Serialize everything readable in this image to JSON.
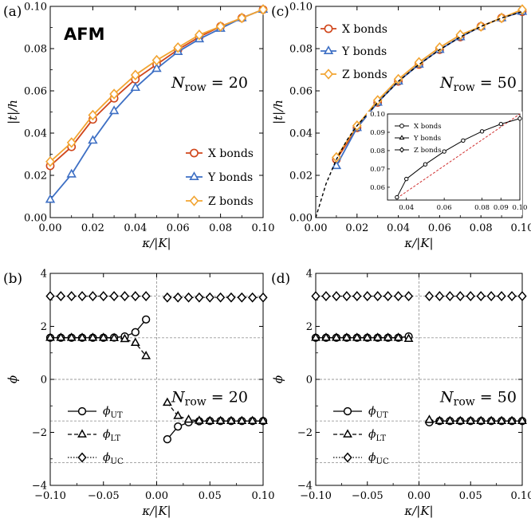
{
  "chart_data": [
    {
      "panel_label": "(a)",
      "type": "line",
      "tag": "AFM",
      "nrow_label": "N_row = 20",
      "xlabel": "κ/|K|",
      "ylabel": "|t|/h",
      "xlim": [
        0,
        0.1
      ],
      "ylim": [
        0,
        0.1
      ],
      "xticks": [
        0,
        0.02,
        0.04,
        0.06,
        0.08,
        0.1
      ],
      "xtick_labels": [
        "0.00",
        "0.02",
        "0.04",
        "0.06",
        "0.08",
        "0.10"
      ],
      "yticks": [
        0,
        0.02,
        0.04,
        0.06,
        0.08,
        0.1
      ],
      "ytick_labels": [
        "0.00",
        "0.02",
        "0.04",
        "0.06",
        "0.08",
        "0.10"
      ],
      "legend_position": "bottom-right",
      "series": [
        {
          "name": "X bonds",
          "color": "#d0461b",
          "marker": "circle",
          "x": [
            0,
            0.01,
            0.02,
            0.03,
            0.04,
            0.05,
            0.06,
            0.07,
            0.08,
            0.09,
            0.1
          ],
          "y": [
            0.0245,
            0.0335,
            0.0465,
            0.0565,
            0.0655,
            0.0725,
            0.0795,
            0.0855,
            0.0905,
            0.0945,
            0.0985
          ]
        },
        {
          "name": "Y bonds",
          "color": "#3d6fc4",
          "marker": "triangle",
          "x": [
            0,
            0.01,
            0.02,
            0.03,
            0.04,
            0.05,
            0.06,
            0.07,
            0.08,
            0.09,
            0.1
          ],
          "y": [
            0.0085,
            0.0205,
            0.0365,
            0.0505,
            0.0615,
            0.0705,
            0.0785,
            0.0845,
            0.0895,
            0.0945,
            0.0985
          ]
        },
        {
          "name": "Z bonds",
          "color": "#f2a431",
          "marker": "diamond",
          "x": [
            0,
            0.01,
            0.02,
            0.03,
            0.04,
            0.05,
            0.06,
            0.07,
            0.08,
            0.09,
            0.1
          ],
          "y": [
            0.0265,
            0.0355,
            0.0485,
            0.0585,
            0.0675,
            0.0745,
            0.0805,
            0.0865,
            0.0905,
            0.0945,
            0.0985
          ]
        }
      ]
    },
    {
      "panel_label": "(c)",
      "type": "line",
      "nrow_label": "N_row = 50",
      "xlabel": "κ/|K|",
      "ylabel": "|t|/h",
      "xlim": [
        0,
        0.1
      ],
      "ylim": [
        0,
        0.1
      ],
      "xticks": [
        0,
        0.02,
        0.04,
        0.06,
        0.08,
        0.1
      ],
      "xtick_labels": [
        "0.00",
        "0.02",
        "0.04",
        "0.06",
        "0.08",
        "0.10"
      ],
      "yticks": [
        0,
        0.02,
        0.04,
        0.06,
        0.08,
        0.1
      ],
      "ytick_labels": [
        "0.00",
        "0.02",
        "0.04",
        "0.06",
        "0.08",
        "0.10"
      ],
      "legend_position": "top-left",
      "fit_curve": {
        "style": "dashed",
        "color": "#000000",
        "x": [
          0,
          0.005,
          0.01,
          0.015,
          0.02,
          0.03,
          0.04,
          0.05,
          0.06,
          0.07,
          0.08,
          0.09,
          0.1
        ],
        "y": [
          0,
          0.016,
          0.0275,
          0.0365,
          0.0435,
          0.0545,
          0.0645,
          0.0725,
          0.0795,
          0.0855,
          0.0905,
          0.0945,
          0.0975
        ]
      },
      "series": [
        {
          "name": "X bonds",
          "color": "#d0461b",
          "marker": "circle",
          "x": [
            0.01,
            0.02,
            0.03,
            0.04,
            0.05,
            0.06,
            0.07,
            0.08,
            0.09,
            0.1
          ],
          "y": [
            0.0275,
            0.0425,
            0.0545,
            0.0645,
            0.0725,
            0.0795,
            0.0855,
            0.0905,
            0.0945,
            0.0975
          ]
        },
        {
          "name": "Y bonds",
          "color": "#3d6fc4",
          "marker": "triangle",
          "x": [
            0.01,
            0.02,
            0.03,
            0.04,
            0.05,
            0.06,
            0.07,
            0.08,
            0.09,
            0.1
          ],
          "y": [
            0.0245,
            0.0425,
            0.0545,
            0.0645,
            0.0725,
            0.0795,
            0.0855,
            0.0905,
            0.0945,
            0.0975
          ]
        },
        {
          "name": "Z bonds",
          "color": "#f2a431",
          "marker": "diamond",
          "x": [
            0.01,
            0.02,
            0.03,
            0.04,
            0.05,
            0.06,
            0.07,
            0.08,
            0.09,
            0.1
          ],
          "y": [
            0.0285,
            0.0435,
            0.0555,
            0.0655,
            0.0735,
            0.0805,
            0.0865,
            0.0905,
            0.0945,
            0.0985
          ]
        }
      ],
      "inset": {
        "xlim": [
          0.03,
          0.1
        ],
        "ylim": [
          0.053,
          0.1
        ],
        "xticks": [
          0.04,
          0.06,
          0.08,
          0.09,
          0.1
        ],
        "xtick_labels": [
          "0.04",
          "0.06",
          "0.08",
          "0.09",
          "0.10"
        ],
        "yticks": [
          0.06,
          0.07,
          0.08,
          0.09,
          0.1
        ],
        "ytick_labels": [
          "0.06",
          "0.07",
          "0.08",
          "0.09",
          "0.10"
        ],
        "legend": [
          "X bonds",
          "Y bonds",
          "Z bonds"
        ],
        "reference_line": {
          "style": "dashed",
          "color": "#d03030",
          "x": [
            0.035,
            0.1
          ],
          "y": [
            0.054,
            0.1
          ]
        },
        "x": [
          0.035,
          0.04,
          0.05,
          0.06,
          0.07,
          0.08,
          0.09,
          0.1
        ],
        "y": [
          0.0545,
          0.0645,
          0.0725,
          0.0795,
          0.0855,
          0.0905,
          0.0945,
          0.0975
        ]
      }
    },
    {
      "panel_label": "(b)",
      "type": "line",
      "nrow_label": "N_row = 20",
      "xlabel": "κ/|K|",
      "ylabel": "ϕ",
      "xlim": [
        -0.1,
        0.1
      ],
      "ylim": [
        -4,
        4
      ],
      "xticks": [
        -0.1,
        -0.05,
        0,
        0.05,
        0.1
      ],
      "xtick_labels": [
        "−0.10",
        "−0.05",
        "0.00",
        "0.05",
        "0.10"
      ],
      "yticks": [
        -4,
        -2,
        0,
        2,
        4
      ],
      "ytick_labels": [
        "−4",
        "−2",
        "0",
        "2",
        "4"
      ],
      "reference_lines_y": [
        3.1416,
        1.5708,
        0,
        -1.5708,
        -3.1416
      ],
      "reference_lines_x": [
        0
      ],
      "legend_position": "bottom-left",
      "series": [
        {
          "name": "ϕ_UT",
          "line": "solid",
          "marker": "circle",
          "segments": [
            {
              "x": [
                -0.1,
                -0.09,
                -0.08,
                -0.07,
                -0.06,
                -0.05,
                -0.04,
                -0.03,
                -0.02,
                -0.01
              ],
              "y": [
                1.5708,
                1.5708,
                1.5708,
                1.5708,
                1.5708,
                1.5708,
                1.58,
                1.62,
                1.78,
                2.26
              ]
            },
            {
              "x": [
                0.01,
                0.02,
                0.03,
                0.04,
                0.05,
                0.06,
                0.07,
                0.08,
                0.09,
                0.1
              ],
              "y": [
                -2.26,
                -1.78,
                -1.62,
                -1.58,
                -1.5708,
                -1.5708,
                -1.5708,
                -1.5708,
                -1.5708,
                -1.5708
              ]
            }
          ]
        },
        {
          "name": "ϕ_LT",
          "line": "dashed",
          "marker": "triangle",
          "segments": [
            {
              "x": [
                -0.1,
                -0.09,
                -0.08,
                -0.07,
                -0.06,
                -0.05,
                -0.04,
                -0.03,
                -0.02,
                -0.01
              ],
              "y": [
                1.5708,
                1.5708,
                1.5708,
                1.5708,
                1.5708,
                1.5708,
                1.56,
                1.52,
                1.38,
                0.88
              ]
            },
            {
              "x": [
                0.01,
                0.02,
                0.03,
                0.04,
                0.05,
                0.06,
                0.07,
                0.08,
                0.09,
                0.1
              ],
              "y": [
                -0.88,
                -1.38,
                -1.52,
                -1.56,
                -1.5708,
                -1.5708,
                -1.5708,
                -1.5708,
                -1.5708,
                -1.5708
              ]
            }
          ]
        },
        {
          "name": "ϕ_UC",
          "line": "dotted",
          "marker": "diamond",
          "segments": [
            {
              "x": [
                -0.1,
                -0.09,
                -0.08,
                -0.07,
                -0.06,
                -0.05,
                -0.04,
                -0.03,
                -0.02,
                -0.01
              ],
              "y": [
                3.14,
                3.14,
                3.14,
                3.14,
                3.14,
                3.14,
                3.14,
                3.14,
                3.14,
                3.14
              ]
            },
            {
              "x": [
                0.01,
                0.02,
                0.03,
                0.04,
                0.05,
                0.06,
                0.07,
                0.08,
                0.09,
                0.1
              ],
              "y": [
                3.09,
                3.09,
                3.09,
                3.09,
                3.09,
                3.09,
                3.09,
                3.09,
                3.09,
                3.09
              ]
            }
          ]
        }
      ]
    },
    {
      "panel_label": "(d)",
      "type": "line",
      "nrow_label": "N_row = 50",
      "xlabel": "κ/|K|",
      "ylabel": "ϕ",
      "xlim": [
        -0.1,
        0.1
      ],
      "ylim": [
        -4,
        4
      ],
      "xticks": [
        -0.1,
        -0.05,
        0,
        0.05,
        0.1
      ],
      "xtick_labels": [
        "−0.10",
        "−0.05",
        "0.00",
        "0.05",
        "0.10"
      ],
      "yticks": [
        -4,
        -2,
        0,
        2,
        4
      ],
      "ytick_labels": [
        "−4",
        "−2",
        "0",
        "2",
        "4"
      ],
      "reference_lines_y": [
        3.1416,
        1.5708,
        0,
        -1.5708,
        -3.1416
      ],
      "reference_lines_x": [
        0
      ],
      "legend_position": "bottom-left",
      "series": [
        {
          "name": "ϕ_UT",
          "line": "solid",
          "marker": "circle",
          "segments": [
            {
              "x": [
                -0.1,
                -0.09,
                -0.08,
                -0.07,
                -0.06,
                -0.05,
                -0.04,
                -0.03,
                -0.02,
                -0.01
              ],
              "y": [
                1.5708,
                1.5708,
                1.5708,
                1.5708,
                1.5708,
                1.5708,
                1.5708,
                1.5708,
                1.5708,
                1.62
              ]
            },
            {
              "x": [
                0.01,
                0.02,
                0.03,
                0.04,
                0.05,
                0.06,
                0.07,
                0.08,
                0.09,
                0.1
              ],
              "y": [
                -1.62,
                -1.5708,
                -1.5708,
                -1.5708,
                -1.5708,
                -1.5708,
                -1.5708,
                -1.5708,
                -1.5708,
                -1.5708
              ]
            }
          ]
        },
        {
          "name": "ϕ_LT",
          "line": "dashed",
          "marker": "triangle",
          "segments": [
            {
              "x": [
                -0.1,
                -0.09,
                -0.08,
                -0.07,
                -0.06,
                -0.05,
                -0.04,
                -0.03,
                -0.02,
                -0.01
              ],
              "y": [
                1.5708,
                1.5708,
                1.5708,
                1.5708,
                1.5708,
                1.5708,
                1.5708,
                1.5708,
                1.5708,
                1.53
              ]
            },
            {
              "x": [
                0.01,
                0.02,
                0.03,
                0.04,
                0.05,
                0.06,
                0.07,
                0.08,
                0.09,
                0.1
              ],
              "y": [
                -1.53,
                -1.5708,
                -1.5708,
                -1.5708,
                -1.5708,
                -1.5708,
                -1.5708,
                -1.5708,
                -1.5708,
                -1.5708
              ]
            }
          ]
        },
        {
          "name": "ϕ_UC",
          "line": "dotted",
          "marker": "diamond",
          "segments": [
            {
              "x": [
                -0.1,
                -0.09,
                -0.08,
                -0.07,
                -0.06,
                -0.05,
                -0.04,
                -0.03,
                -0.02,
                -0.01
              ],
              "y": [
                3.14,
                3.14,
                3.14,
                3.14,
                3.14,
                3.14,
                3.14,
                3.14,
                3.14,
                3.14
              ]
            },
            {
              "x": [
                0.01,
                0.02,
                0.03,
                0.04,
                0.05,
                0.06,
                0.07,
                0.08,
                0.09,
                0.1
              ],
              "y": [
                3.14,
                3.14,
                3.14,
                3.14,
                3.14,
                3.14,
                3.14,
                3.14,
                3.14,
                3.14
              ]
            }
          ]
        }
      ]
    }
  ]
}
